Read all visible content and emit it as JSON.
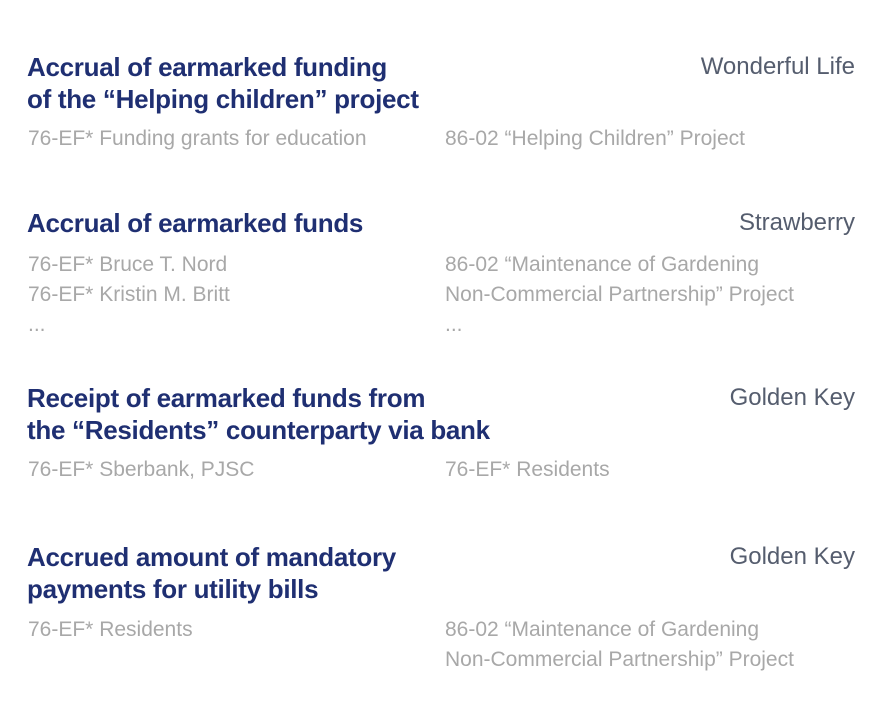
{
  "entries": [
    {
      "title_lines": [
        "Accrual of earmarked funding",
        "of the “Helping children” project"
      ],
      "organization": "Wonderful Life",
      "debit_lines": [
        "76-EF* Funding grants for education"
      ],
      "credit_lines": [
        "86-02 “Helping Children” Project"
      ]
    },
    {
      "title_lines": [
        "Accrual of earmarked funds"
      ],
      "organization": "Strawberry",
      "debit_lines": [
        "76-EF* Bruce T. Nord",
        "76-EF* Kristin M. Britt",
        "..."
      ],
      "credit_lines": [
        "86-02 “Maintenance of Gardening",
        "Non-Commercial Partnership” Project",
        "..."
      ]
    },
    {
      "title_lines": [
        "Receipt of earmarked funds from",
        "the “Residents” counterparty via bank"
      ],
      "organization": "Golden Key",
      "debit_lines": [
        "76-EF* Sberbank, PJSC"
      ],
      "credit_lines": [
        "76-EF* Residents"
      ]
    },
    {
      "title_lines": [
        "Accrued amount of mandatory",
        "payments for utility bills"
      ],
      "organization": "Golden Key",
      "debit_lines": [
        "76-EF* Residents"
      ],
      "credit_lines": [
        "86-02 “Maintenance of Gardening",
        "Non-Commercial Partnership” Project"
      ]
    }
  ]
}
